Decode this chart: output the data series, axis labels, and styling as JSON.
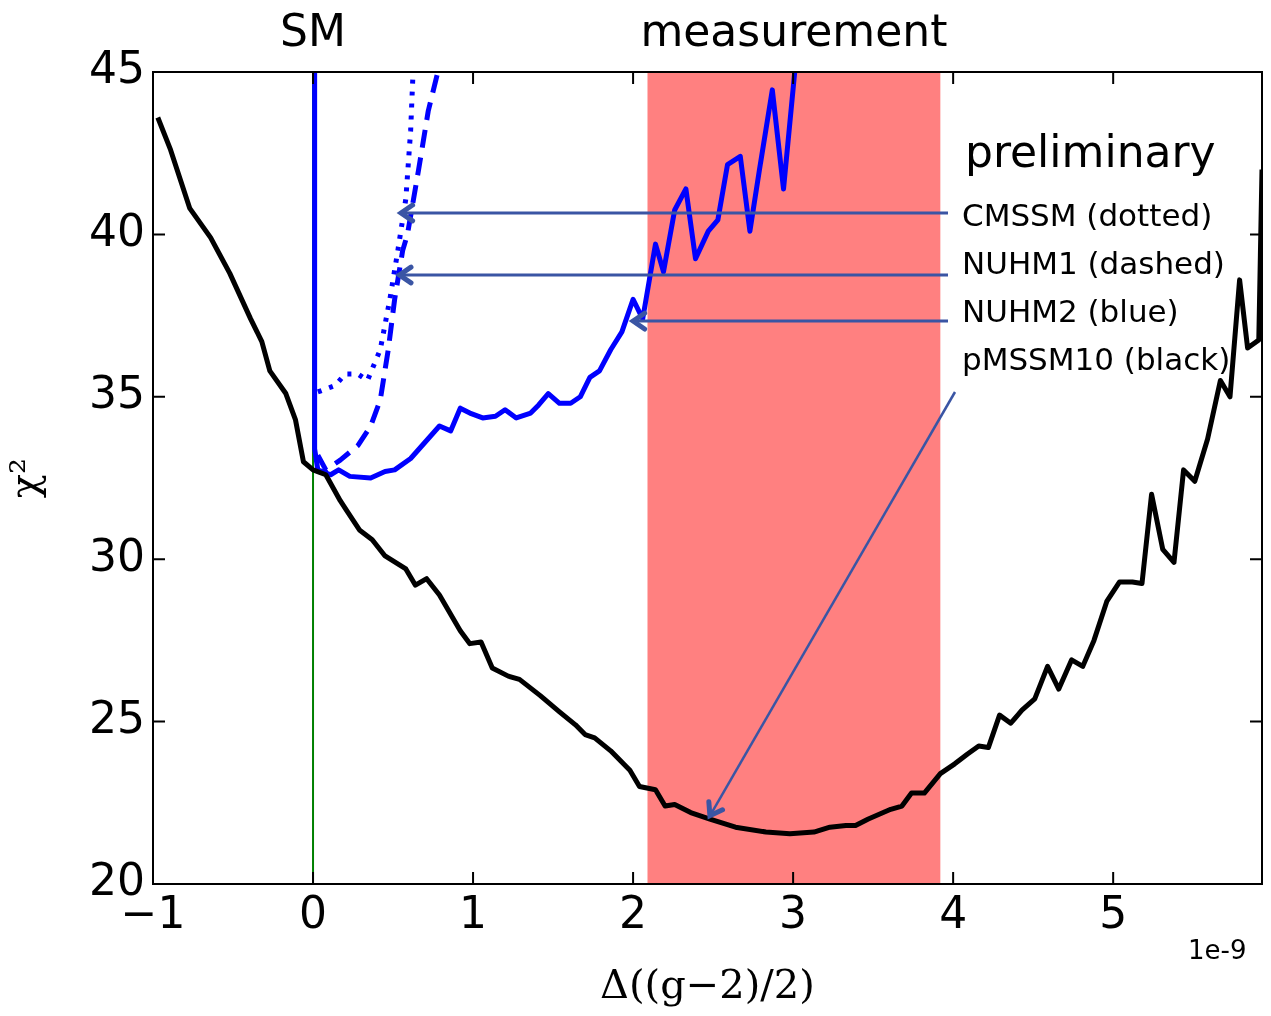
{
  "chart_data": {
    "type": "line",
    "xlabel": "Δ((g−2)/2)",
    "ylabel": "χ²",
    "xlim": [
      -1,
      5.93
    ],
    "xticks": [
      {
        "value": -1,
        "label": "−1"
      },
      0,
      1,
      2,
      3,
      4,
      5
    ],
    "ylim": [
      20,
      45
    ],
    "yticks": [
      20,
      25,
      30,
      35,
      40,
      45
    ],
    "grid": false,
    "legend": false,
    "series": [
      {
        "color": "#000000",
        "line_style": "solid",
        "x": [
          -0.97,
          -0.89,
          -0.77,
          -0.64,
          -0.52,
          -0.39,
          -0.32,
          -0.27,
          -0.17,
          -0.11,
          -0.06,
          0,
          0.08,
          0.17,
          0.29,
          0.37,
          0.45,
          0.58,
          0.64,
          0.71,
          0.79,
          0.92,
          0.98,
          1.05,
          1.12,
          1.22,
          1.29,
          1.42,
          1.54,
          1.64,
          1.7,
          1.76,
          1.86,
          1.92,
          1.98,
          2.04,
          2.14,
          2.2,
          2.26,
          2.36,
          2.48,
          2.64,
          2.83,
          2.98,
          3.13,
          3.23,
          3.33,
          3.39,
          3.47,
          3.61,
          3.68,
          3.74,
          3.82,
          3.92,
          4.01,
          4.09,
          4.16,
          4.22,
          4.29,
          4.36,
          4.43,
          4.51,
          4.59,
          4.66,
          4.74,
          4.81,
          4.88,
          4.96,
          5.04,
          5.12,
          5.18,
          5.24,
          5.31,
          5.38,
          5.44,
          5.51,
          5.59,
          5.67,
          5.73,
          5.79,
          5.84,
          5.91,
          5.93
        ],
        "values": [
          43.6,
          42.6,
          40.8,
          39.9,
          38.8,
          37.4,
          36.7,
          35.8,
          35.1,
          34.3,
          33.0,
          32.75,
          32.6,
          31.8,
          30.9,
          30.6,
          30.1,
          29.7,
          29.2,
          29.4,
          28.9,
          27.8,
          27.4,
          27.45,
          26.65,
          26.4,
          26.3,
          25.8,
          25.3,
          24.9,
          24.6,
          24.5,
          24.1,
          23.8,
          23.5,
          23.0,
          22.9,
          22.4,
          22.45,
          22.2,
          22.0,
          21.75,
          21.6,
          21.55,
          21.6,
          21.75,
          21.8,
          21.8,
          22.0,
          22.3,
          22.4,
          22.8,
          22.8,
          23.4,
          23.7,
          24.0,
          24.25,
          24.2,
          25.2,
          24.95,
          25.35,
          25.7,
          26.7,
          26.0,
          26.9,
          26.7,
          27.5,
          28.7,
          29.3,
          29.3,
          29.25,
          32.0,
          30.3,
          29.9,
          32.75,
          32.4,
          33.7,
          35.5,
          35.0,
          38.6,
          36.5,
          36.75,
          42.0
        ]
      },
      {
        "color": "#0000ff",
        "line_style": "solid",
        "x": [
          0.01,
          0.01,
          0.03,
          0.11,
          0.16,
          0.23,
          0.36,
          0.45,
          0.51,
          0.61,
          0.79,
          0.86,
          0.92,
          0.98,
          1.06,
          1.14,
          1.2,
          1.27,
          1.36,
          1.41,
          1.47,
          1.54,
          1.61,
          1.67,
          1.73,
          1.79,
          1.86,
          1.93,
          2.0,
          2.06,
          2.14,
          2.19,
          2.26,
          2.33,
          2.39,
          2.47,
          2.53,
          2.59,
          2.67,
          2.73,
          2.79,
          2.87,
          2.94,
          3.01
        ],
        "values": [
          45,
          33.4,
          32.75,
          32.6,
          32.75,
          32.55,
          32.5,
          32.7,
          32.75,
          33.1,
          34.1,
          33.95,
          34.65,
          34.5,
          34.35,
          34.4,
          34.6,
          34.35,
          34.5,
          34.75,
          35.1,
          34.8,
          34.8,
          35.0,
          35.6,
          35.8,
          36.45,
          37.0,
          38.0,
          37.4,
          39.7,
          38.85,
          40.75,
          41.4,
          39.25,
          40.1,
          40.45,
          42.15,
          42.4,
          40.1,
          42.0,
          44.45,
          41.4,
          45.0
        ]
      },
      {
        "color": "#0000ff",
        "line_style": "dashed",
        "x": [
          0.03,
          0.08,
          0.17,
          0.28,
          0.36,
          0.42,
          0.47,
          0.51,
          0.56,
          0.59,
          0.66,
          0.72,
          0.78
        ],
        "values": [
          33.2,
          32.75,
          33.05,
          33.5,
          34.1,
          34.9,
          36.45,
          38.0,
          39.5,
          40.0,
          42.0,
          43.8,
          45
        ]
      },
      {
        "color": "#0000ff",
        "line_style": "dotted",
        "x": [
          0.03,
          0.14,
          0.2,
          0.28,
          0.34,
          0.42,
          0.48,
          0.53,
          0.58,
          0.61,
          0.625
        ],
        "values": [
          35.15,
          35.35,
          35.7,
          35.7,
          35.5,
          36.45,
          38.0,
          39.5,
          41.1,
          43.2,
          45
        ]
      }
    ],
    "ref_lines": [
      {
        "axis": "x",
        "value": 0,
        "label": "SM",
        "color": "#008000"
      }
    ],
    "bands": [
      {
        "axis": "x",
        "from": 2.09,
        "to": 3.92,
        "label": "measurement",
        "color": "#ff8080"
      }
    ],
    "annotations": [
      "preliminary",
      {
        "text": "CMSSM (dotted)",
        "x": 0.55,
        "y": 40.66
      },
      {
        "text": "NUHM1 (dashed)",
        "x": 0.54,
        "y": 38.75
      },
      {
        "text": "NUHM2 (blue)",
        "x": 2.0,
        "y": 37.33
      },
      {
        "text": "pMSSM10 (black)",
        "x": 2.48,
        "y": 22.1
      },
      "1e-9"
    ]
  }
}
